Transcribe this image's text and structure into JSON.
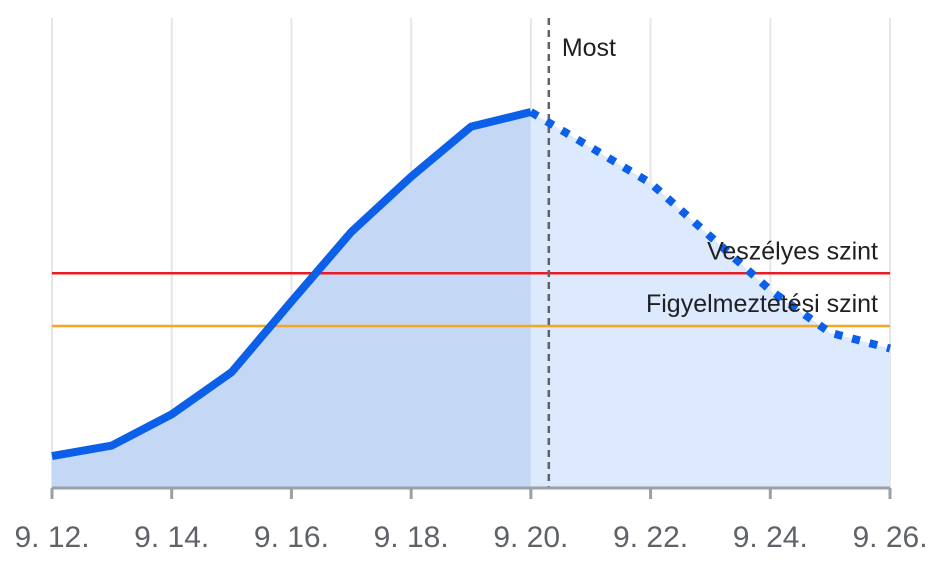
{
  "chart_data": {
    "type": "area",
    "x": [
      "9. 12.",
      "9. 13.",
      "9. 14.",
      "9. 15.",
      "9. 16.",
      "9. 17.",
      "9. 18.",
      "9. 19.",
      "9. 20.",
      "9. 21.",
      "9. 22.",
      "9. 23.",
      "9. 24.",
      "9. 25.",
      "9. 26."
    ],
    "x_tick_labels": [
      "9. 12.",
      "9. 14.",
      "9. 16.",
      "9. 18.",
      "9. 20.",
      "9. 22.",
      "9. 24.",
      "9. 26."
    ],
    "series": [
      {
        "style": "observed",
        "x": [
          "9. 12.",
          "9. 13.",
          "9. 14.",
          "9. 15.",
          "9. 16.",
          "9. 17.",
          "9. 18.",
          "9. 19.",
          "9. 20."
        ],
        "values": [
          8.5,
          11.3,
          19.6,
          30.8,
          49.6,
          68.1,
          82.8,
          96.1,
          100
        ]
      },
      {
        "style": "forecast",
        "x": [
          "9. 20.",
          "9. 21.",
          "9. 22.",
          "9. 23.",
          "9. 24.",
          "9. 25.",
          "9. 26."
        ],
        "values": [
          100,
          90.6,
          81.1,
          66.9,
          52.6,
          41.3,
          37.1
        ]
      }
    ],
    "reference_lines": [
      {
        "label": "Veszélyes szint",
        "value": 57.1,
        "color": "#ea1c24"
      },
      {
        "label": "Figyelmeztetési szint",
        "value": 43.1,
        "color": "#f5a623"
      }
    ],
    "now_marker": {
      "label": "Most",
      "x_index": 8.3
    },
    "ylim": [
      0,
      125
    ],
    "grid": "vertical",
    "colors": {
      "line": "#0b5fe8",
      "observed_fill": "#c4d8f6",
      "forecast_fill": "#dde9fc",
      "grid": "#e6e6e6",
      "axis": "#9aa0a6",
      "now_line": "#5f6368"
    }
  }
}
